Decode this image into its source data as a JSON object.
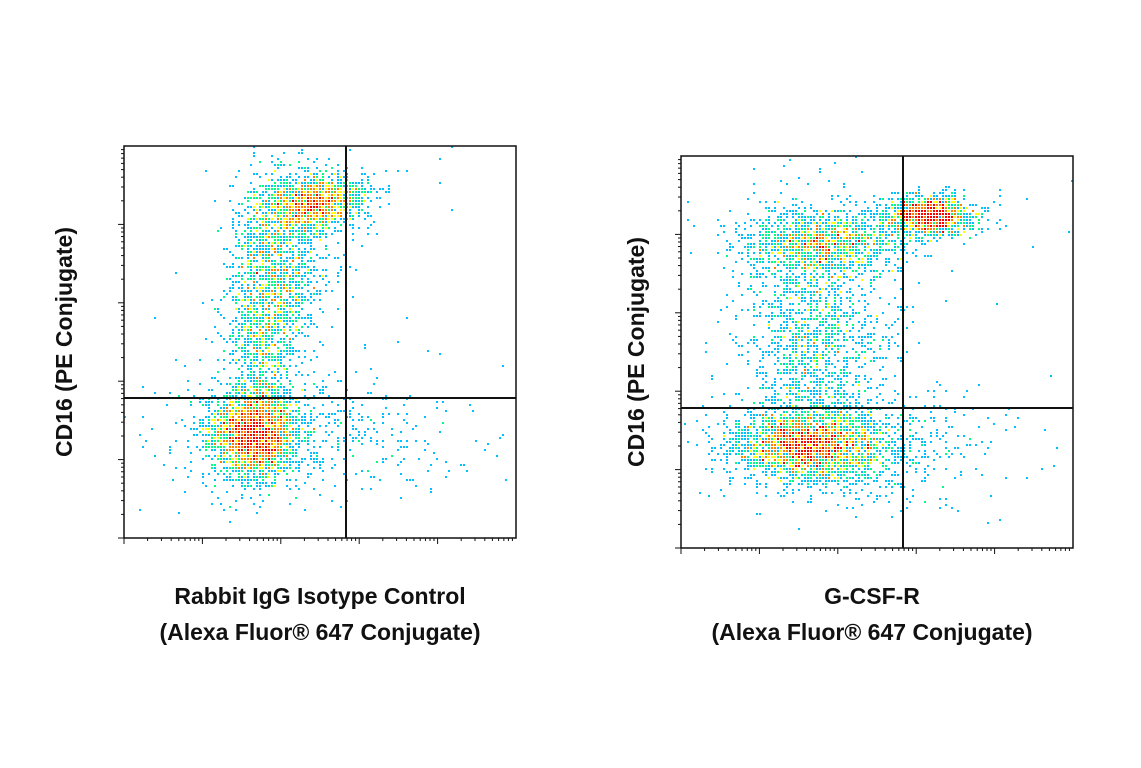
{
  "chart_data": [
    {
      "type": "scatter",
      "plot_style": "flow cytometry pseudocolor density dot plot",
      "xlabel_lines": [
        "Rabbit IgG Isotype Control",
        "(Alexa Fluor® 647 Conjugate)"
      ],
      "ylabel": "CD16 (PE Conjugate)",
      "x_scale": "log",
      "y_scale": "log",
      "xlim": [
        0,
        1
      ],
      "ylim": [
        0,
        1
      ],
      "quadrant_gate": {
        "x": 0.57,
        "y": 0.36
      },
      "populations": [
        {
          "name": "CD16-negative cluster",
          "x": 0.33,
          "y": 0.27,
          "density": "highest"
        },
        {
          "name": "CD16-positive cluster",
          "x": 0.36,
          "y": 0.78,
          "density": "high"
        },
        {
          "name": "CD16-high cluster",
          "x": 0.49,
          "y": 0.85,
          "density": "high"
        }
      ],
      "color_scale": [
        "#1a1aff",
        "#00c0ff",
        "#00ff80",
        "#ffff00",
        "#ff8000",
        "#ff0000"
      ],
      "grid": false
    },
    {
      "type": "scatter",
      "plot_style": "flow cytometry pseudocolor density dot plot",
      "xlabel_lines": [
        "G-CSF-R",
        "(Alexa Fluor® 647 Conjugate)"
      ],
      "ylabel": "CD16 (PE Conjugate)",
      "x_scale": "log",
      "y_scale": "log",
      "xlim": [
        0,
        1
      ],
      "ylim": [
        0,
        1
      ],
      "quadrant_gate": {
        "x": 0.57,
        "y": 0.36
      },
      "populations": [
        {
          "name": "CD16-negative cluster",
          "x": 0.36,
          "y": 0.27,
          "density": "highest"
        },
        {
          "name": "CD16-positive cluster",
          "x": 0.38,
          "y": 0.78,
          "density": "high"
        },
        {
          "name": "G-CSF-R+ CD16-high cluster",
          "x": 0.63,
          "y": 0.85,
          "density": "highest"
        }
      ],
      "color_scale": [
        "#1a1aff",
        "#00c0ff",
        "#00ff80",
        "#ffff00",
        "#ff8000",
        "#ff0000"
      ],
      "grid": false
    }
  ]
}
